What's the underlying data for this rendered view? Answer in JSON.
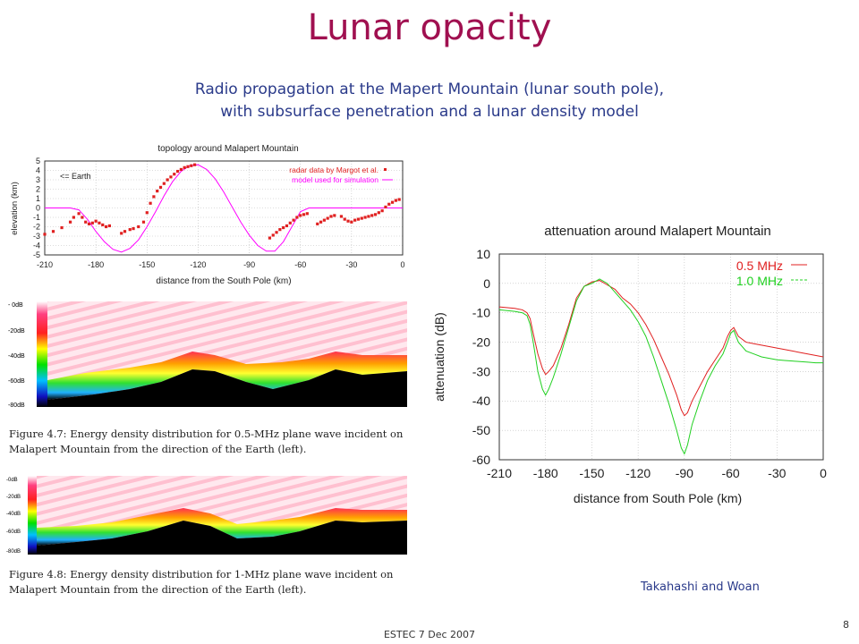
{
  "slide": {
    "title": "Lunar opacity",
    "subtitle_line1": "Radio propagation at the Mapert Mountain (lunar south pole),",
    "subtitle_line2": "with subsurface penetration and a lunar density model",
    "credit": "Takahashi and Woan",
    "footer": "ESTEC 7 Dec 2007",
    "page_number": "8"
  },
  "figure_47_caption": "Figure 4.7: Energy density distribution for 0.5-MHz plane wave incident on Malapert Mountain from the direction of the Earth (left).",
  "figure_48_caption": "Figure 4.8: Energy density distribution for 1-MHz plane wave incident on Malapert Mountain from the direction of the Earth (left).",
  "colorbar_47": {
    "labels": [
      "- 0dB",
      "-20dB",
      "-40dB",
      "-60dB",
      "-80dB"
    ]
  },
  "colorbar_48": {
    "labels": [
      "-0dB",
      "-20dB",
      "-40dB",
      "-60dB",
      "-80dB"
    ]
  },
  "colors": {
    "title": "#a01050",
    "subtitle": "#2a3a8a",
    "red_series": "#e02020",
    "green_series": "#20d020",
    "magenta_model": "#ff00ff"
  },
  "chart_data": [
    {
      "type": "scatter",
      "title": "topology around Malapert Mountain",
      "xlabel": "distance from the South Pole (km)",
      "ylabel": "elevation (km)",
      "xlim": [
        -210,
        0
      ],
      "ylim": [
        -5,
        5
      ],
      "xticks": [
        "-210",
        "-180",
        "-150",
        "-120",
        "-90",
        "-60",
        "-30",
        "0"
      ],
      "yticks": [
        "5",
        "4",
        "3",
        "2",
        "1",
        "0",
        "-1",
        "-2",
        "-3",
        "-4",
        "-5"
      ],
      "grid": true,
      "annotation": "<= Earth",
      "legend_position": "top-right",
      "series": [
        {
          "name": "radar data by Margot et al.",
          "style": "points",
          "x": [
            -210,
            -205,
            -200,
            -195,
            -193,
            -190,
            -188,
            -186,
            -184,
            -182,
            -180,
            -178,
            -176,
            -174,
            -172,
            -165,
            -163,
            -160,
            -158,
            -155,
            -152,
            -150,
            -148,
            -146,
            -144,
            -142,
            -140,
            -138,
            -136,
            -134,
            -132,
            -130,
            -128,
            -126,
            -124,
            -122,
            -78,
            -76,
            -74,
            -72,
            -70,
            -68,
            -66,
            -64,
            -62,
            -60,
            -58,
            -56,
            -50,
            -48,
            -46,
            -44,
            -42,
            -40,
            -36,
            -34,
            -32,
            -30,
            -28,
            -26,
            -24,
            -22,
            -20,
            -18,
            -16,
            -14,
            -12,
            -10,
            -8,
            -6,
            -4,
            -2
          ],
          "y": [
            -2.8,
            -2.5,
            -2.1,
            -1.5,
            -1.0,
            -0.6,
            -1.0,
            -1.5,
            -1.7,
            -1.6,
            -1.4,
            -1.6,
            -1.8,
            -2.0,
            -1.9,
            -2.7,
            -2.5,
            -2.3,
            -2.2,
            -2.0,
            -1.5,
            -0.5,
            0.5,
            1.2,
            1.8,
            2.2,
            2.6,
            3.0,
            3.3,
            3.6,
            3.9,
            4.1,
            4.3,
            4.4,
            4.5,
            4.6,
            -3.2,
            -2.9,
            -2.6,
            -2.3,
            -2.1,
            -1.9,
            -1.6,
            -1.3,
            -1.0,
            -0.8,
            -0.7,
            -0.6,
            -1.7,
            -1.5,
            -1.3,
            -1.1,
            -0.9,
            -0.8,
            -0.9,
            -1.2,
            -1.4,
            -1.5,
            -1.3,
            -1.2,
            -1.1,
            -1.0,
            -0.9,
            -0.8,
            -0.7,
            -0.5,
            -0.3,
            0.1,
            0.4,
            0.6,
            0.8,
            0.9
          ]
        },
        {
          "name": "model used for simulation",
          "style": "line",
          "x": [
            -210,
            -195,
            -190,
            -185,
            -180,
            -175,
            -170,
            -165,
            -160,
            -155,
            -150,
            -145,
            -140,
            -135,
            -130,
            -125,
            -120,
            -115,
            -110,
            -105,
            -100,
            -95,
            -90,
            -85,
            -80,
            -75,
            -70,
            -65,
            -60,
            -55,
            -30,
            0
          ],
          "y": [
            0,
            0,
            -0.2,
            -1.2,
            -2.5,
            -3.6,
            -4.4,
            -4.7,
            -4.3,
            -3.4,
            -2.0,
            -0.4,
            1.3,
            2.8,
            3.9,
            4.5,
            4.6,
            4.1,
            3.1,
            1.7,
            0.1,
            -1.5,
            -2.9,
            -4.0,
            -4.6,
            -4.6,
            -3.6,
            -2.0,
            -0.4,
            0,
            0,
            0
          ]
        }
      ]
    },
    {
      "type": "line",
      "title": "attenuation around Malapert Mountain",
      "xlabel": "distance from South Pole (km)",
      "ylabel": "attenuation (dB)",
      "xlim": [
        -210,
        0
      ],
      "ylim": [
        -60,
        10
      ],
      "xticks": [
        "-210",
        "-180",
        "-150",
        "-120",
        "-90",
        "-60",
        "-30",
        "0"
      ],
      "yticks": [
        "10",
        "0",
        "-10",
        "-20",
        "-30",
        "-40",
        "-50",
        "-60"
      ],
      "grid": true,
      "legend_position": "top-right",
      "series": [
        {
          "name": "0.5 MHz",
          "x": [
            -210,
            -200,
            -195,
            -192,
            -190,
            -188,
            -185,
            -182,
            -180,
            -178,
            -175,
            -170,
            -165,
            -160,
            -155,
            -150,
            -145,
            -140,
            -135,
            -130,
            -125,
            -120,
            -115,
            -110,
            -105,
            -100,
            -95,
            -92,
            -90,
            -88,
            -85,
            -80,
            -75,
            -70,
            -65,
            -62,
            -60,
            -58,
            -55,
            -50,
            -45,
            -40,
            -35,
            -30,
            -25,
            -20,
            -15,
            -10,
            -5,
            0
          ],
          "y": [
            -8,
            -8.5,
            -9,
            -10,
            -12,
            -17,
            -24,
            -29,
            -31,
            -30,
            -28,
            -22,
            -14,
            -5,
            -1,
            0.5,
            1,
            -0.5,
            -2,
            -5,
            -7,
            -10,
            -14,
            -19,
            -25,
            -31,
            -38,
            -43,
            -45,
            -44,
            -40,
            -35,
            -30,
            -26,
            -22,
            -18,
            -16,
            -15,
            -18,
            -20,
            -20.5,
            -21,
            -21.5,
            -22,
            -22.5,
            -23,
            -23.5,
            -24,
            -24.5,
            -25
          ]
        },
        {
          "name": "1.0 MHz",
          "x": [
            -210,
            -200,
            -195,
            -192,
            -190,
            -188,
            -185,
            -182,
            -180,
            -178,
            -175,
            -170,
            -165,
            -160,
            -155,
            -150,
            -145,
            -140,
            -135,
            -130,
            -125,
            -120,
            -115,
            -110,
            -105,
            -100,
            -95,
            -92,
            -90,
            -88,
            -85,
            -80,
            -75,
            -70,
            -65,
            -62,
            -60,
            -58,
            -55,
            -50,
            -45,
            -40,
            -35,
            -30,
            -25,
            -20,
            -15,
            -10,
            -5,
            0
          ],
          "y": [
            -9,
            -9.5,
            -10,
            -11,
            -14,
            -20,
            -30,
            -36,
            -38,
            -36,
            -32,
            -24,
            -15,
            -6,
            -1,
            0,
            1.5,
            0,
            -3,
            -6,
            -9,
            -13,
            -18,
            -25,
            -33,
            -41,
            -50,
            -56,
            -58,
            -55,
            -48,
            -40,
            -33,
            -28,
            -24,
            -20,
            -17,
            -16,
            -20,
            -23,
            -24,
            -25,
            -25.5,
            -26,
            -26.2,
            -26.4,
            -26.6,
            -26.8,
            -27,
            -27
          ]
        }
      ]
    }
  ]
}
